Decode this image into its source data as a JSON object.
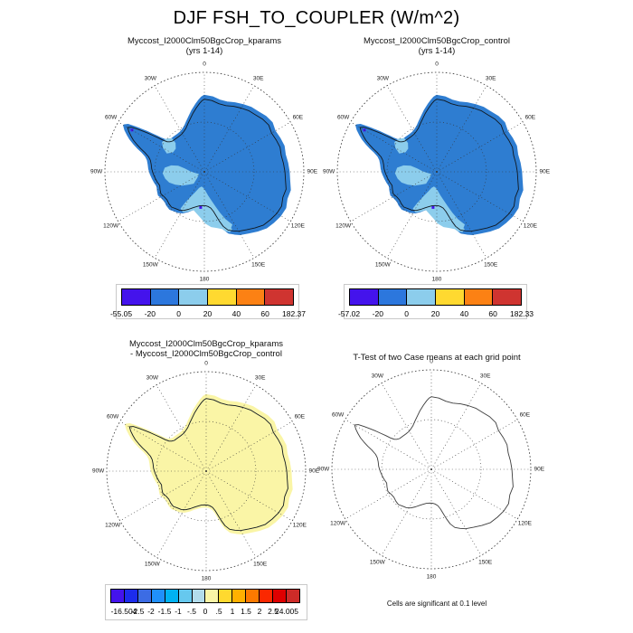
{
  "title": "DJF FSH_TO_COUPLER (W/m^2)",
  "ring_labels": [
    "0",
    "30E",
    "60E",
    "90E",
    "120E",
    "150E",
    "180",
    "150W",
    "120W",
    "90W",
    "60W",
    "30W"
  ],
  "colors": {
    "map_blue": "#2e7dd1",
    "map_light_blue": "#8ccdec",
    "map_pale_yellow": "#faf5a6",
    "map_violet_speck": "#4413ec",
    "coast_outline": "#101820",
    "ttest_outline": "#3c3c3c",
    "grid": "#333333"
  },
  "panels": [
    {
      "id": "kparams",
      "title_lines": [
        "Myccost_I2000Clm50BgcCrop_kparams",
        "(yrs 1-14)"
      ],
      "colorbar": {
        "colors": [
          "#4413ec",
          "#2c77dd",
          "#8ccdec",
          "#ffd930",
          "#fc8114",
          "#cf3430"
        ],
        "labels": [
          "-55.05",
          "-20",
          "0",
          "20",
          "40",
          "60",
          "182.37"
        ]
      }
    },
    {
      "id": "control",
      "title_lines": [
        "Myccost_I2000Clm50BgcCrop_control",
        "(yrs 1-14)"
      ],
      "colorbar": {
        "colors": [
          "#4413ec",
          "#2c77dd",
          "#8ccdec",
          "#ffd930",
          "#fc8114",
          "#cf3430"
        ],
        "labels": [
          "-57.02",
          "-20",
          "0",
          "20",
          "40",
          "60",
          "182.33"
        ]
      }
    },
    {
      "id": "difference",
      "title_lines": [
        "Myccost_I2000Clm50BgcCrop_kparams",
        "- Myccost_I2000Clm50BgcCrop_control"
      ],
      "colorbar": {
        "colors": [
          "#4413ec",
          "#1c2cec",
          "#3c6ce4",
          "#2090fa",
          "#00b2f2",
          "#66c8ee",
          "#b2dcec",
          "#faf5a6",
          "#ffd92f",
          "#ffb000",
          "#fc7a00",
          "#fb2800",
          "#de0000",
          "#cd2b28"
        ],
        "labels": [
          "-16.504",
          "-2.5",
          "-2",
          "-1.5",
          "-1",
          "-.5",
          "0",
          ".5",
          "1",
          "1.5",
          "2",
          "2.5",
          "24.005"
        ]
      }
    },
    {
      "id": "ttest",
      "title_lines": [
        "T-Test of two Case means at each grid point"
      ],
      "caption": "Cells are significant at 0.1 level"
    }
  ],
  "chart_data": [
    {
      "type": "heatmap",
      "subtype": "south-polar-stereographic-contour-map",
      "title": "Myccost_I2000Clm50BgcCrop_kparams (yrs 1-14)",
      "units": "W/m^2",
      "region": "Antarctica",
      "contour_levels": [
        -20,
        0,
        20,
        40,
        60
      ],
      "data_min": -55.05,
      "data_max": 182.37,
      "legend_position": "bottom",
      "meridian_labels": [
        "0",
        "30E",
        "60E",
        "90E",
        "120E",
        "150E",
        "180",
        "150W",
        "120W",
        "90W",
        "60W",
        "30W"
      ],
      "dominant_values": "continent mostly in 0-20 W/m^2 bin (blue) with -20-0 W/m^2 patches (light blue) over West Antarctica and Ross/Ronne ice shelves"
    },
    {
      "type": "heatmap",
      "subtype": "south-polar-stereographic-contour-map",
      "title": "Myccost_I2000Clm50BgcCrop_control (yrs 1-14)",
      "units": "W/m^2",
      "region": "Antarctica",
      "contour_levels": [
        -20,
        0,
        20,
        40,
        60
      ],
      "data_min": -57.02,
      "data_max": 182.33,
      "legend_position": "bottom",
      "meridian_labels": [
        "0",
        "30E",
        "60E",
        "90E",
        "120E",
        "150E",
        "180",
        "150W",
        "120W",
        "90W",
        "60W",
        "30W"
      ],
      "dominant_values": "continent mostly in 0-20 W/m^2 bin (blue) with -20-0 W/m^2 patches (light blue) over West Antarctica and Ross/Ronne ice shelves"
    },
    {
      "type": "heatmap",
      "subtype": "south-polar-stereographic-contour-map",
      "title": "Myccost_I2000Clm50BgcCrop_kparams - Myccost_I2000Clm50BgcCrop_control",
      "units": "W/m^2",
      "region": "Antarctica",
      "contour_levels": [
        -2.5,
        -2,
        -1.5,
        -1,
        -0.5,
        0,
        0.5,
        1,
        1.5,
        2,
        2.5
      ],
      "data_min": -16.504,
      "data_max": 24.005,
      "legend_position": "bottom",
      "meridian_labels": [
        "0",
        "30E",
        "60E",
        "90E",
        "120E",
        "150E",
        "180",
        "150W",
        "120W",
        "90W",
        "60W",
        "30W"
      ],
      "dominant_values": "entire continent in 0-0.5 W/m^2 bin (pale yellow)"
    },
    {
      "type": "heatmap",
      "subtype": "south-polar-stereographic-significance-map",
      "title": "T-Test of two Case means at each grid point",
      "annotation": "Cells are significant at 0.1 level",
      "meridian_labels": [
        "0",
        "30E",
        "60E",
        "90E",
        "120E",
        "150E",
        "180",
        "150W",
        "120W",
        "90W",
        "60W",
        "30W"
      ],
      "dominant_values": "no significant cells shaded; coastline outline only"
    }
  ]
}
